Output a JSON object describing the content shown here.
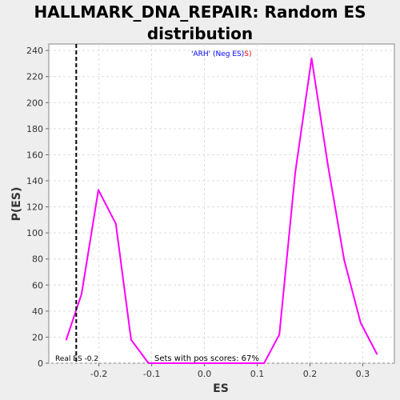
{
  "chart_data": {
    "type": "line",
    "title_line1": "HALLMARK_DNA_REPAIR: Random ES",
    "title_line2": "distribution",
    "xlabel": "ES",
    "ylabel": "P(ES)",
    "xlim": [
      -0.295,
      0.36
    ],
    "ylim": [
      0,
      245
    ],
    "xticks": [
      -0.2,
      -0.1,
      0.0,
      0.1,
      0.2,
      0.3
    ],
    "xtick_labels": [
      "-0.2",
      "-0.1",
      "0.0",
      "0.1",
      "0.2",
      "0.3"
    ],
    "yticks": [
      0,
      20,
      40,
      60,
      80,
      100,
      120,
      140,
      160,
      180,
      200,
      220,
      240
    ],
    "grid": true,
    "series": [
      {
        "color": "#ff00ff",
        "x": [
          -0.262,
          -0.233,
          -0.201,
          -0.168,
          -0.139,
          -0.106,
          -0.075,
          -0.043,
          -0.012,
          0.019,
          0.05,
          0.081,
          0.113,
          0.142,
          0.172,
          0.203,
          0.234,
          0.265,
          0.296,
          0.327
        ],
        "y": [
          18,
          53,
          133,
          107,
          18,
          0,
          0,
          0,
          0,
          0,
          0,
          0,
          0,
          22,
          146,
          234,
          152,
          79,
          31,
          7
        ]
      }
    ],
    "real_es": -0.243,
    "real_es_label": "Real ES -0.2",
    "legend_text_blue": "'ARH' (Neg ES)",
    "legend_text_red": "S)",
    "annotation_pos_scores": "Sets with pos scores: 67%",
    "colors": {
      "series": "#ff00ff",
      "real_es_line": "#000000",
      "legend_blue": "#0000ff",
      "legend_red": "#ff0000"
    }
  }
}
